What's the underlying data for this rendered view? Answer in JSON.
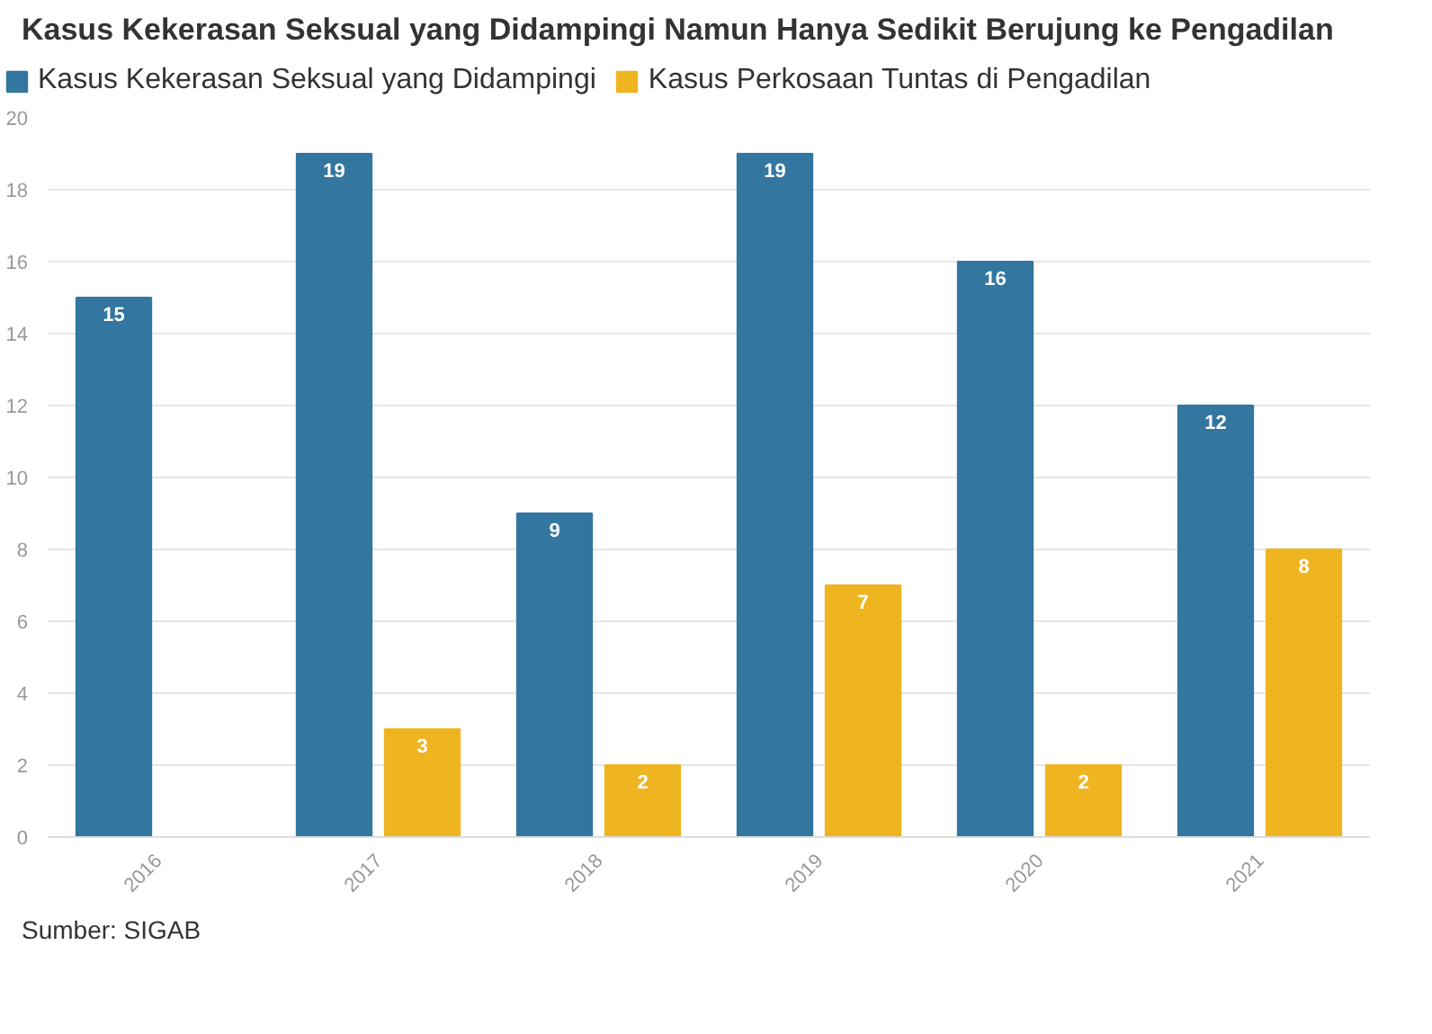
{
  "chart_data": {
    "type": "bar",
    "title": "Kasus Kekerasan Seksual yang Didampingi Namun Hanya Sedikit Berujung ke Pengadilan",
    "categories": [
      "2016",
      "2017",
      "2018",
      "2019",
      "2020",
      "2021"
    ],
    "series": [
      {
        "name": "Kasus Kekerasan Seksual yang Didampingi",
        "color": "#33769f",
        "values": [
          15,
          19,
          9,
          19,
          16,
          12
        ]
      },
      {
        "name": "Kasus Perkosaan Tuntas di Pengadilan",
        "color": "#efb521",
        "values": [
          null,
          3,
          2,
          7,
          2,
          8
        ]
      }
    ],
    "ylim": [
      0,
      20
    ],
    "yticks": [
      0,
      2,
      4,
      6,
      8,
      10,
      12,
      14,
      16,
      18,
      20
    ],
    "grid": "y",
    "legend": "top left",
    "data_labels": true,
    "annotations": [
      "Sumber: SIGAB"
    ]
  }
}
